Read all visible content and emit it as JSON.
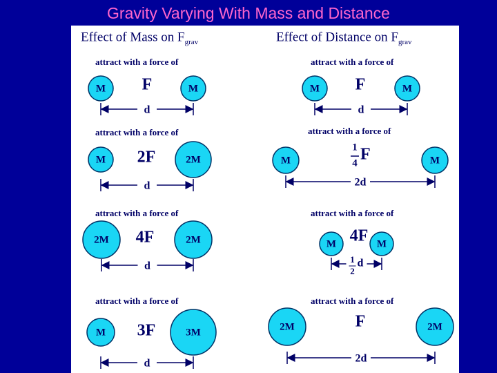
{
  "title": "Gravity Varying With Mass and Distance",
  "columns": [
    {
      "heading": "Effect of Mass on F",
      "heading_sub": "grav",
      "rows": [
        {
          "caption": "attract with a force of",
          "left": "M",
          "force": "F",
          "right": "M",
          "distance": "d"
        },
        {
          "caption": "attract with a force of",
          "left": "M",
          "force": "2F",
          "right": "2M",
          "distance": "d"
        },
        {
          "caption": "attract with a force of",
          "left": "2M",
          "force": "4F",
          "right": "2M",
          "distance": "d"
        },
        {
          "caption": "attract with a force of",
          "left": "M",
          "force": "3F",
          "right": "3M",
          "distance": "d"
        }
      ]
    },
    {
      "heading": "Effect of Distance on F",
      "heading_sub": "grav",
      "rows": [
        {
          "caption": "attract with a force of",
          "left": "M",
          "force": "F",
          "right": "M",
          "distance": "d"
        },
        {
          "caption": "attract with a force of",
          "left": "M",
          "force": "F",
          "force_fraction": {
            "num": "1",
            "den": "4"
          },
          "right": "M",
          "distance": "2d"
        },
        {
          "caption": "attract with a force of",
          "left": "M",
          "force": "4F",
          "right": "M",
          "distance": "d",
          "distance_fraction": {
            "num": "1",
            "den": "2"
          }
        },
        {
          "caption": "attract with a force of",
          "left": "2M",
          "force": "F",
          "right": "2M",
          "distance": "2d"
        }
      ]
    }
  ]
}
